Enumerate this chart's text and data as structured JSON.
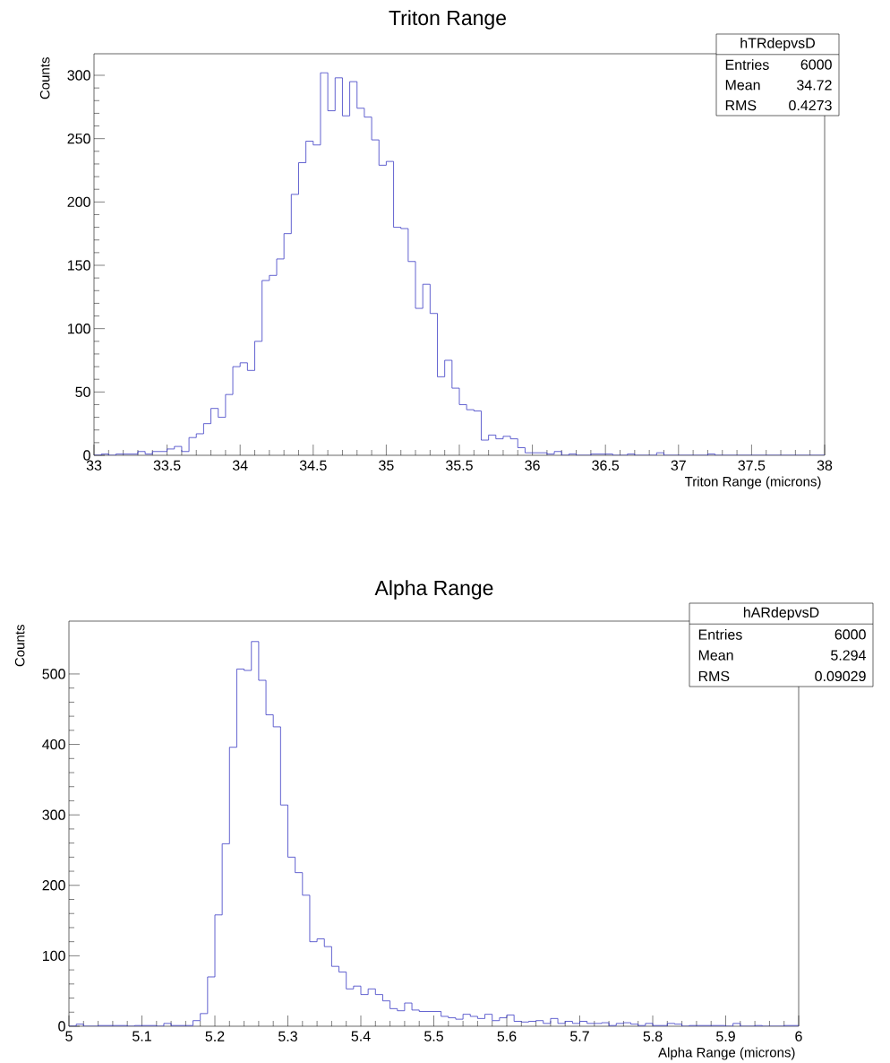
{
  "chart_data": [
    {
      "type": "histogram",
      "title": "Triton Range",
      "xlabel": "Triton Range (microns)",
      "ylabel": "Counts",
      "color": "#3b3bc4",
      "bins": [
        33,
        33.05,
        33.1,
        33.15,
        33.2,
        33.25,
        33.3,
        33.35,
        33.4,
        33.45,
        33.5,
        33.55,
        33.6,
        33.65,
        33.7,
        33.75,
        33.8,
        33.85,
        33.9,
        33.95,
        34,
        34.05,
        34.1,
        34.15,
        34.2,
        34.25,
        34.3,
        34.35,
        34.4,
        34.45,
        34.5,
        34.55,
        34.6,
        34.65,
        34.7,
        34.75,
        34.8,
        34.85,
        34.9,
        34.95,
        35,
        35.05,
        35.1,
        35.15,
        35.2,
        35.25,
        35.3,
        35.35,
        35.4,
        35.45,
        35.5,
        35.55,
        35.6,
        35.65,
        35.7,
        35.75,
        35.8,
        35.85,
        35.9,
        35.95,
        36,
        36.05,
        36.1,
        36.15,
        36.2,
        36.25,
        36.3,
        36.35,
        36.4,
        36.45,
        36.5,
        36.55,
        36.6,
        36.65,
        36.7,
        36.75,
        36.8,
        36.85,
        36.9,
        36.95,
        37,
        37.05,
        37.1,
        37.15,
        37.2,
        37.25,
        37.3,
        37.35,
        37.4,
        37.45,
        37.5,
        37.55,
        37.6,
        37.65,
        37.7,
        37.75,
        37.8,
        37.85,
        37.9,
        37.95,
        38
      ],
      "values": [
        0,
        1,
        0,
        1,
        1,
        1,
        3,
        1,
        3,
        3,
        5,
        7,
        3,
        14,
        17,
        25,
        37,
        30,
        48,
        70,
        73,
        67,
        90,
        138,
        142,
        155,
        175,
        206,
        231,
        248,
        245,
        302,
        272,
        298,
        268,
        295,
        274,
        267,
        249,
        229,
        232,
        180,
        179,
        153,
        116,
        135,
        112,
        62,
        75,
        53,
        40,
        36,
        35,
        12,
        16,
        13,
        15,
        13,
        6,
        2,
        2,
        2,
        1,
        3,
        0,
        1,
        0,
        0,
        1,
        1,
        1,
        0,
        0,
        1,
        0,
        0,
        0,
        2,
        0,
        0,
        0,
        0,
        0,
        0,
        1,
        0,
        0,
        0,
        0,
        0,
        0,
        0,
        0,
        0,
        0,
        0,
        0,
        0,
        0,
        0
      ],
      "xlim": [
        33,
        38
      ],
      "xticks": [
        33,
        33.5,
        34,
        34.5,
        35,
        35.5,
        36,
        36.5,
        37,
        37.5,
        38
      ],
      "ylim": [
        0,
        317
      ],
      "yticks": [
        0,
        50,
        100,
        150,
        200,
        250,
        300
      ],
      "annotations": [
        "hTRdepvsD",
        "Entries",
        "6000",
        "Mean",
        "34.72",
        "RMS",
        "0.4273"
      ]
    },
    {
      "type": "histogram",
      "title": "Alpha Range",
      "xlabel": "Alpha Range (microns)",
      "ylabel": "Counts",
      "color": "#3b3bc4",
      "bins": [
        5,
        5.01,
        5.02,
        5.03,
        5.04,
        5.05,
        5.06,
        5.07,
        5.08,
        5.09,
        5.1,
        5.11,
        5.12,
        5.13,
        5.14,
        5.15,
        5.16,
        5.17,
        5.18,
        5.19,
        5.2,
        5.21,
        5.22,
        5.23,
        5.24,
        5.25,
        5.26,
        5.27,
        5.28,
        5.29,
        5.3,
        5.31,
        5.32,
        5.33,
        5.34,
        5.35,
        5.36,
        5.37,
        5.38,
        5.39,
        5.4,
        5.41,
        5.42,
        5.43,
        5.44,
        5.45,
        5.46,
        5.47,
        5.48,
        5.49,
        5.5,
        5.51,
        5.52,
        5.53,
        5.54,
        5.55,
        5.56,
        5.57,
        5.58,
        5.59,
        5.6,
        5.61,
        5.62,
        5.63,
        5.64,
        5.65,
        5.66,
        5.67,
        5.68,
        5.69,
        5.7,
        5.71,
        5.72,
        5.73,
        5.74,
        5.75,
        5.76,
        5.77,
        5.78,
        5.79,
        5.8,
        5.81,
        5.82,
        5.83,
        5.84,
        5.85,
        5.86,
        5.87,
        5.88,
        5.89,
        5.9,
        5.91,
        5.92,
        5.93,
        5.94,
        5.95,
        5.96,
        5.97,
        5.98,
        5.99,
        6
      ],
      "values": [
        0,
        3,
        0,
        0,
        1,
        1,
        1,
        1,
        0,
        1,
        1,
        1,
        0,
        4,
        1,
        1,
        1,
        8,
        18,
        70,
        158,
        259,
        396,
        507,
        505,
        546,
        491,
        442,
        425,
        314,
        240,
        218,
        186,
        120,
        124,
        113,
        85,
        77,
        53,
        57,
        45,
        53,
        45,
        36,
        25,
        22,
        33,
        23,
        21,
        21,
        21,
        14,
        12,
        10,
        17,
        14,
        11,
        17,
        8,
        12,
        16,
        7,
        6,
        7,
        8,
        4,
        11,
        4,
        7,
        4,
        7,
        4,
        4,
        5,
        1,
        4,
        5,
        3,
        1,
        4,
        1,
        1,
        4,
        3,
        0,
        1,
        1,
        1,
        1,
        1,
        0,
        4,
        0,
        0,
        1,
        0,
        0,
        0,
        1,
        1
      ],
      "xlim": [
        5,
        6
      ],
      "xticks": [
        5,
        5.1,
        5.2,
        5.3,
        5.4,
        5.5,
        5.6,
        5.7,
        5.8,
        5.9,
        6
      ],
      "ylim": [
        0,
        575
      ],
      "yticks": [
        0,
        100,
        200,
        300,
        400,
        500
      ],
      "annotations": [
        "hARdepvsD",
        "Entries",
        "6000",
        "Mean",
        "5.294",
        "RMS",
        "0.09029"
      ]
    }
  ]
}
